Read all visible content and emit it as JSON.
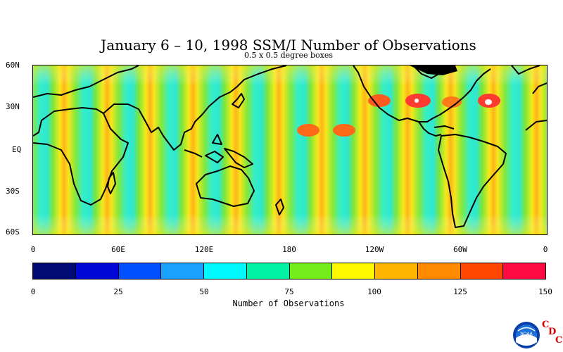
{
  "header": {
    "title": "January 6 – 10, 1998 SSM/I Number of Observations",
    "subtitle": "0.5 x 0.5 degree boxes"
  },
  "map": {
    "lat_labels": [
      "60N",
      "30N",
      "EQ",
      "30S",
      "60S"
    ],
    "lon_labels": [
      "0",
      "60E",
      "120E",
      "180",
      "120W",
      "60W",
      "0"
    ]
  },
  "colorbar": {
    "colors": [
      "#000a73",
      "#0008d8",
      "#0050ff",
      "#1aa0ff",
      "#00f8ff",
      "#00f2a2",
      "#73ee1b",
      "#fff800",
      "#ffb600",
      "#ff8a00",
      "#ff4600",
      "#ff0a40"
    ],
    "labels": [
      "0",
      "25",
      "50",
      "75",
      "100",
      "125",
      "150"
    ],
    "title": "Number of Observations"
  },
  "logo": {
    "icon": "noaa-logo-icon",
    "text": "NOAA",
    "c1": "C",
    "d": "D",
    "c2": "C"
  }
}
